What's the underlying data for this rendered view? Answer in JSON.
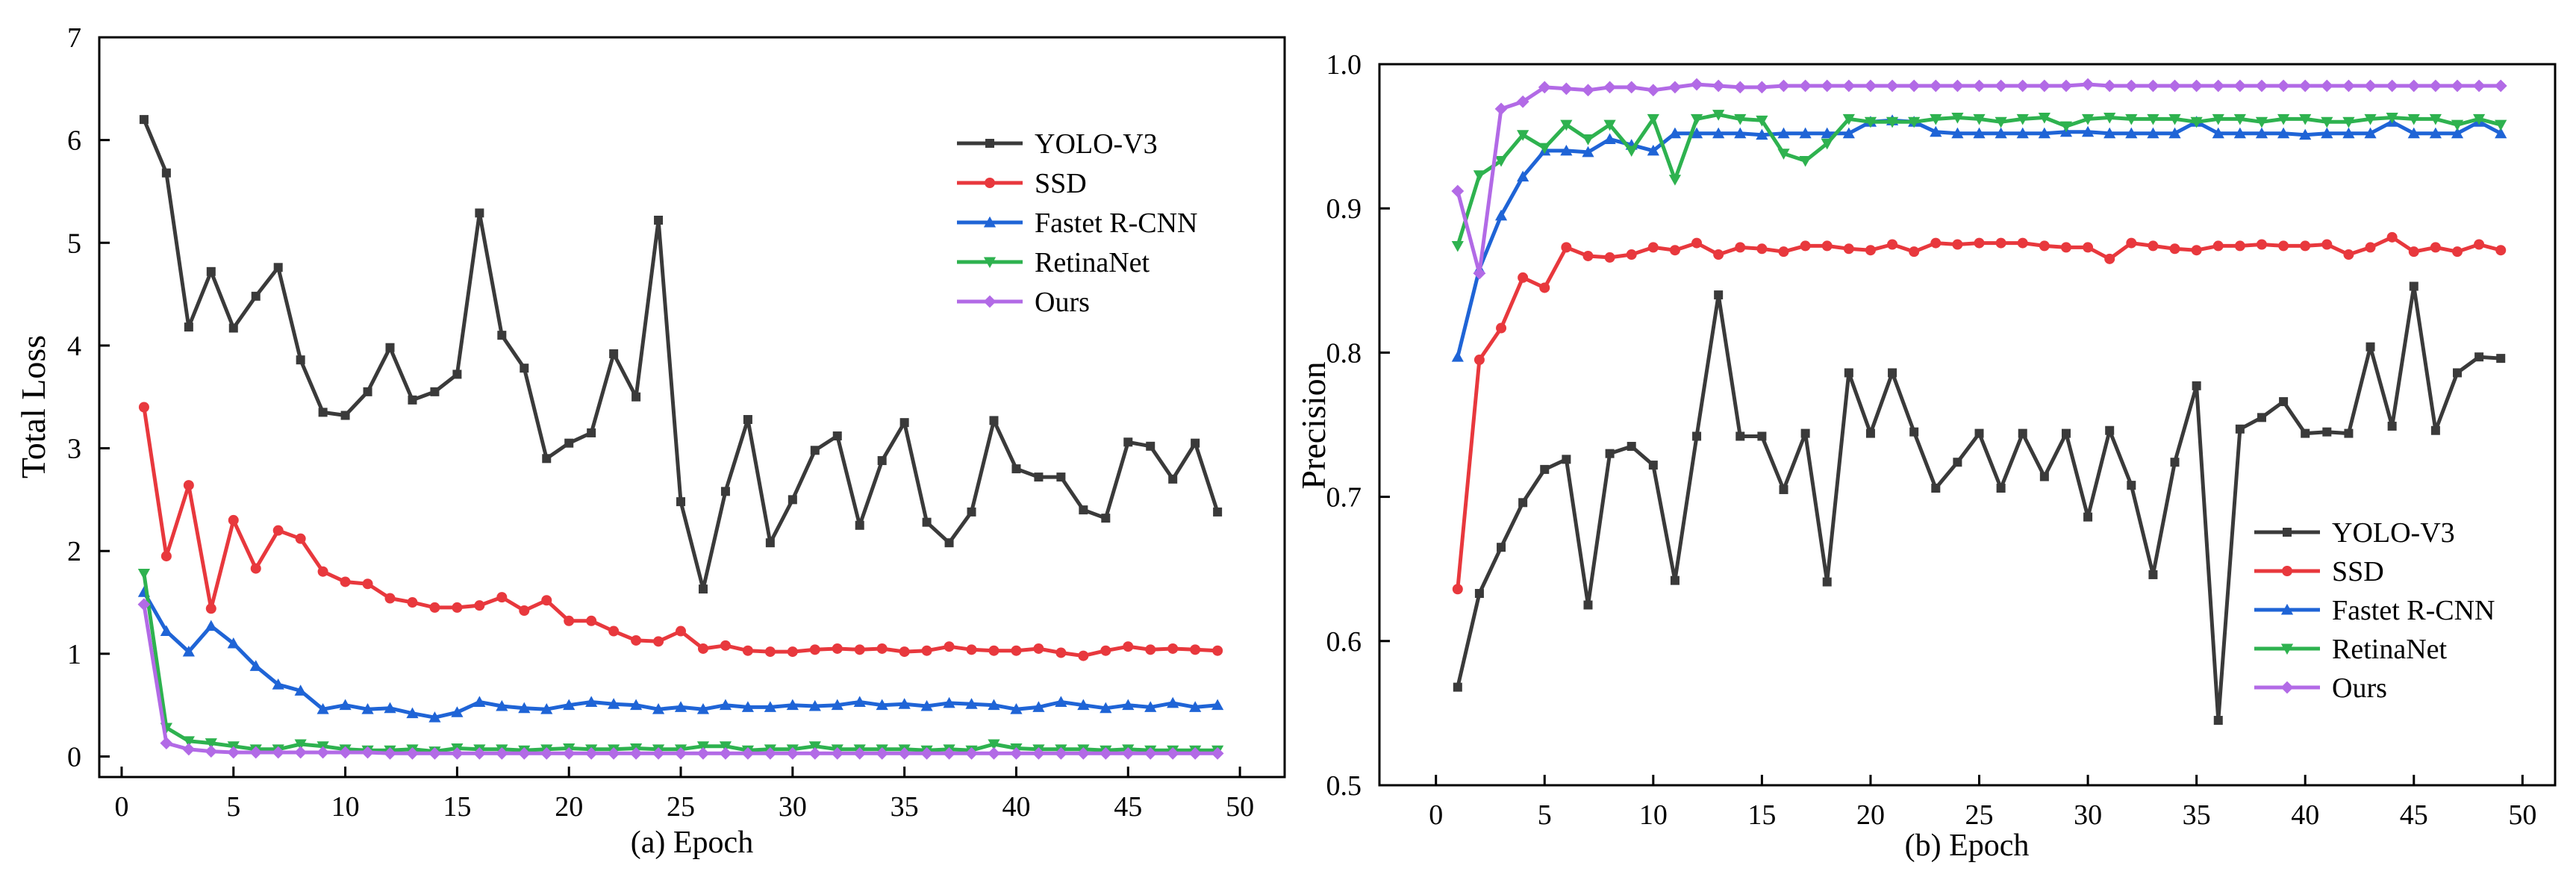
{
  "colors": {
    "YOLO-V3": "#3a3a3a",
    "SSD": "#e8383d",
    "Fastet R-CNN": "#1f64d6",
    "RetinaNet": "#2eb24f",
    "Ours": "#b26ae6"
  },
  "chart_data": [
    {
      "type": "line",
      "title": "",
      "xlabel": "(a) Epoch",
      "ylabel": "Total Loss",
      "xlim": [
        -1,
        52
      ],
      "ylim": [
        -0.2,
        7
      ],
      "xticks": [
        0,
        5,
        10,
        15,
        20,
        25,
        30,
        35,
        40,
        45,
        50
      ],
      "yticks": [
        0,
        1,
        2,
        3,
        4,
        5,
        6,
        7
      ],
      "legend_position": "top-right",
      "series": [
        {
          "name": "YOLO-V3",
          "marker": "square",
          "values": [
            6.2,
            5.68,
            4.18,
            4.72,
            4.17,
            4.48,
            4.76,
            3.86,
            3.35,
            3.32,
            3.55,
            3.98,
            3.47,
            3.55,
            3.72,
            5.29,
            4.1,
            3.78,
            2.9,
            3.05,
            3.15,
            3.92,
            3.5,
            5.22,
            2.48,
            1.63,
            2.58,
            3.28,
            2.08,
            2.5,
            2.98,
            3.12,
            2.25,
            2.88,
            3.25,
            2.28,
            2.08,
            2.38,
            3.27,
            2.8,
            2.72,
            2.72,
            2.4,
            2.32,
            3.06,
            3.02,
            2.7,
            3.05,
            2.38
          ]
        },
        {
          "name": "SSD",
          "marker": "circle",
          "values": [
            3.4,
            1.95,
            2.64,
            1.44,
            2.3,
            1.83,
            2.2,
            2.12,
            1.8,
            1.7,
            1.68,
            1.54,
            1.5,
            1.45,
            1.45,
            1.47,
            1.55,
            1.42,
            1.52,
            1.32,
            1.32,
            1.22,
            1.13,
            1.12,
            1.22,
            1.05,
            1.08,
            1.03,
            1.02,
            1.02,
            1.04,
            1.05,
            1.04,
            1.05,
            1.02,
            1.03,
            1.07,
            1.04,
            1.03,
            1.03,
            1.05,
            1.01,
            0.98,
            1.03,
            1.07,
            1.04,
            1.05,
            1.04,
            1.03
          ]
        },
        {
          "name": "Fastet R-CNN",
          "marker": "triangle-up",
          "values": [
            1.6,
            1.22,
            1.02,
            1.27,
            1.1,
            0.88,
            0.7,
            0.64,
            0.46,
            0.5,
            0.46,
            0.47,
            0.42,
            0.38,
            0.43,
            0.53,
            0.49,
            0.47,
            0.46,
            0.5,
            0.53,
            0.51,
            0.5,
            0.46,
            0.48,
            0.46,
            0.5,
            0.48,
            0.48,
            0.5,
            0.49,
            0.5,
            0.53,
            0.5,
            0.51,
            0.49,
            0.52,
            0.51,
            0.5,
            0.46,
            0.48,
            0.53,
            0.5,
            0.47,
            0.5,
            0.48,
            0.52,
            0.48,
            0.5
          ]
        },
        {
          "name": "RetinaNet",
          "marker": "triangle-down",
          "values": [
            1.78,
            0.28,
            0.15,
            0.13,
            0.1,
            0.07,
            0.07,
            0.12,
            0.1,
            0.07,
            0.06,
            0.06,
            0.07,
            0.05,
            0.08,
            0.07,
            0.07,
            0.06,
            0.07,
            0.08,
            0.07,
            0.07,
            0.08,
            0.07,
            0.07,
            0.1,
            0.1,
            0.06,
            0.07,
            0.07,
            0.1,
            0.07,
            0.07,
            0.07,
            0.07,
            0.06,
            0.07,
            0.06,
            0.12,
            0.08,
            0.07,
            0.07,
            0.07,
            0.06,
            0.07,
            0.06,
            0.06,
            0.06,
            0.06
          ]
        },
        {
          "name": "Ours",
          "marker": "diamond",
          "values": [
            1.48,
            0.13,
            0.07,
            0.05,
            0.04,
            0.04,
            0.04,
            0.04,
            0.04,
            0.04,
            0.04,
            0.03,
            0.03,
            0.03,
            0.03,
            0.03,
            0.03,
            0.03,
            0.03,
            0.03,
            0.03,
            0.03,
            0.03,
            0.03,
            0.03,
            0.03,
            0.03,
            0.03,
            0.03,
            0.03,
            0.03,
            0.03,
            0.03,
            0.03,
            0.03,
            0.03,
            0.03,
            0.03,
            0.03,
            0.03,
            0.03,
            0.03,
            0.03,
            0.03,
            0.03,
            0.03,
            0.03,
            0.03,
            0.03
          ]
        }
      ]
    },
    {
      "type": "line",
      "title": "",
      "xlabel": "(b) Epoch",
      "ylabel": "Precision",
      "xlim": [
        -2.6,
        51.5
      ],
      "ylim": [
        0.5,
        1.0
      ],
      "xticks": [
        0,
        5,
        10,
        15,
        20,
        25,
        30,
        35,
        40,
        45,
        50
      ],
      "yticks": [
        0.5,
        0.6,
        0.7,
        0.8,
        0.9,
        1.0
      ],
      "legend_position": "bottom-right",
      "series": [
        {
          "name": "YOLO-V3",
          "marker": "square",
          "values": [
            0.568,
            0.633,
            0.665,
            0.696,
            0.719,
            0.726,
            0.625,
            0.73,
            0.735,
            0.722,
            0.642,
            0.742,
            0.84,
            0.742,
            0.742,
            0.705,
            0.744,
            0.641,
            0.786,
            0.744,
            0.786,
            0.745,
            0.706,
            0.724,
            0.744,
            0.706,
            0.744,
            0.714,
            0.744,
            0.686,
            0.746,
            0.708,
            0.646,
            0.724,
            0.777,
            0.545,
            0.747,
            0.755,
            0.766,
            0.744,
            0.745,
            0.744,
            0.804,
            0.749,
            0.846,
            0.746,
            0.786,
            0.797,
            0.796
          ]
        },
        {
          "name": "SSD",
          "marker": "circle",
          "values": [
            0.636,
            0.795,
            0.817,
            0.852,
            0.845,
            0.873,
            0.867,
            0.866,
            0.868,
            0.873,
            0.871,
            0.876,
            0.868,
            0.873,
            0.872,
            0.87,
            0.874,
            0.874,
            0.872,
            0.871,
            0.875,
            0.87,
            0.876,
            0.875,
            0.876,
            0.876,
            0.876,
            0.874,
            0.873,
            0.873,
            0.865,
            0.876,
            0.874,
            0.872,
            0.871,
            0.874,
            0.874,
            0.875,
            0.874,
            0.874,
            0.875,
            0.868,
            0.873,
            0.88,
            0.87,
            0.873,
            0.87,
            0.875,
            0.871
          ]
        },
        {
          "name": "Fastet R-CNN",
          "marker": "triangle-up",
          "values": [
            0.797,
            0.858,
            0.895,
            0.922,
            0.94,
            0.94,
            0.939,
            0.948,
            0.944,
            0.94,
            0.952,
            0.952,
            0.952,
            0.952,
            0.951,
            0.952,
            0.952,
            0.952,
            0.952,
            0.96,
            0.961,
            0.96,
            0.953,
            0.952,
            0.952,
            0.952,
            0.952,
            0.952,
            0.953,
            0.953,
            0.952,
            0.952,
            0.952,
            0.952,
            0.96,
            0.952,
            0.952,
            0.952,
            0.952,
            0.951,
            0.952,
            0.952,
            0.952,
            0.96,
            0.952,
            0.952,
            0.952,
            0.96,
            0.952
          ]
        },
        {
          "name": "RetinaNet",
          "marker": "triangle-down",
          "values": [
            0.874,
            0.923,
            0.933,
            0.951,
            0.942,
            0.958,
            0.948,
            0.958,
            0.94,
            0.962,
            0.92,
            0.962,
            0.965,
            0.962,
            0.961,
            0.938,
            0.933,
            0.945,
            0.962,
            0.96,
            0.96,
            0.96,
            0.962,
            0.963,
            0.962,
            0.96,
            0.962,
            0.963,
            0.957,
            0.962,
            0.963,
            0.962,
            0.962,
            0.962,
            0.96,
            0.962,
            0.962,
            0.96,
            0.962,
            0.962,
            0.96,
            0.96,
            0.962,
            0.963,
            0.962,
            0.962,
            0.958,
            0.962,
            0.958
          ]
        },
        {
          "name": "Ours",
          "marker": "diamond",
          "values": [
            0.912,
            0.855,
            0.969,
            0.974,
            0.984,
            0.983,
            0.982,
            0.984,
            0.984,
            0.982,
            0.984,
            0.986,
            0.985,
            0.984,
            0.984,
            0.985,
            0.985,
            0.985,
            0.985,
            0.985,
            0.985,
            0.985,
            0.985,
            0.985,
            0.985,
            0.985,
            0.985,
            0.985,
            0.985,
            0.986,
            0.985,
            0.985,
            0.985,
            0.985,
            0.985,
            0.985,
            0.985,
            0.985,
            0.985,
            0.985,
            0.985,
            0.985,
            0.985,
            0.985,
            0.985,
            0.985,
            0.985,
            0.985,
            0.985
          ]
        }
      ]
    }
  ]
}
